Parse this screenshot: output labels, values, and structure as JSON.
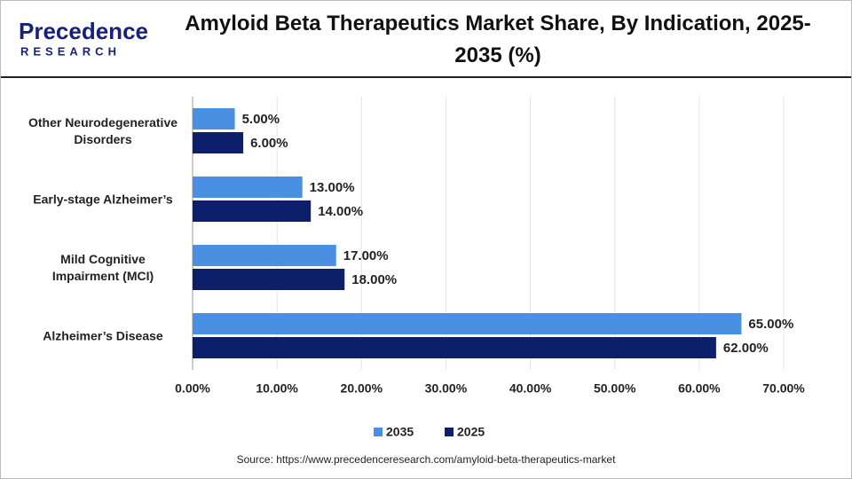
{
  "logo": {
    "name": "Precedence",
    "tagline": "RESEARCH"
  },
  "source": "Source: https://www.precedenceresearch.com/amyloid-beta-therapeutics-market",
  "chart_data": {
    "type": "hbar",
    "title": "Amyloid Beta Therapeutics Market Share, By Indication, 2025-2035 (%)",
    "categories": [
      "Other Neurodegenerative Disorders",
      "Early-stage Alzheimer’s",
      "Mild Cognitive Impairment (MCI)",
      "Alzheimer’s Disease"
    ],
    "series": [
      {
        "name": "2035",
        "color": "#4a90e2",
        "values": [
          5,
          13,
          17,
          65
        ],
        "value_labels": [
          "5.00%",
          "13.00%",
          "17.00%",
          "65.00%"
        ]
      },
      {
        "name": "2025",
        "color": "#0d1f6b",
        "values": [
          6,
          14,
          18,
          62
        ],
        "value_labels": [
          "6.00%",
          "14.00%",
          "18.00%",
          "62.00%"
        ]
      }
    ],
    "xlim": [
      0,
      70
    ],
    "xticks": [
      {
        "value": 0,
        "label": "0.00%"
      },
      {
        "value": 10,
        "label": "10.00%"
      },
      {
        "value": 20,
        "label": "20.00%"
      },
      {
        "value": 30,
        "label": "30.00%"
      },
      {
        "value": 40,
        "label": "40.00%"
      },
      {
        "value": 50,
        "label": "50.00%"
      },
      {
        "value": 60,
        "label": "60.00%"
      },
      {
        "value": 70,
        "label": "70.00%"
      }
    ],
    "grid": true
  }
}
